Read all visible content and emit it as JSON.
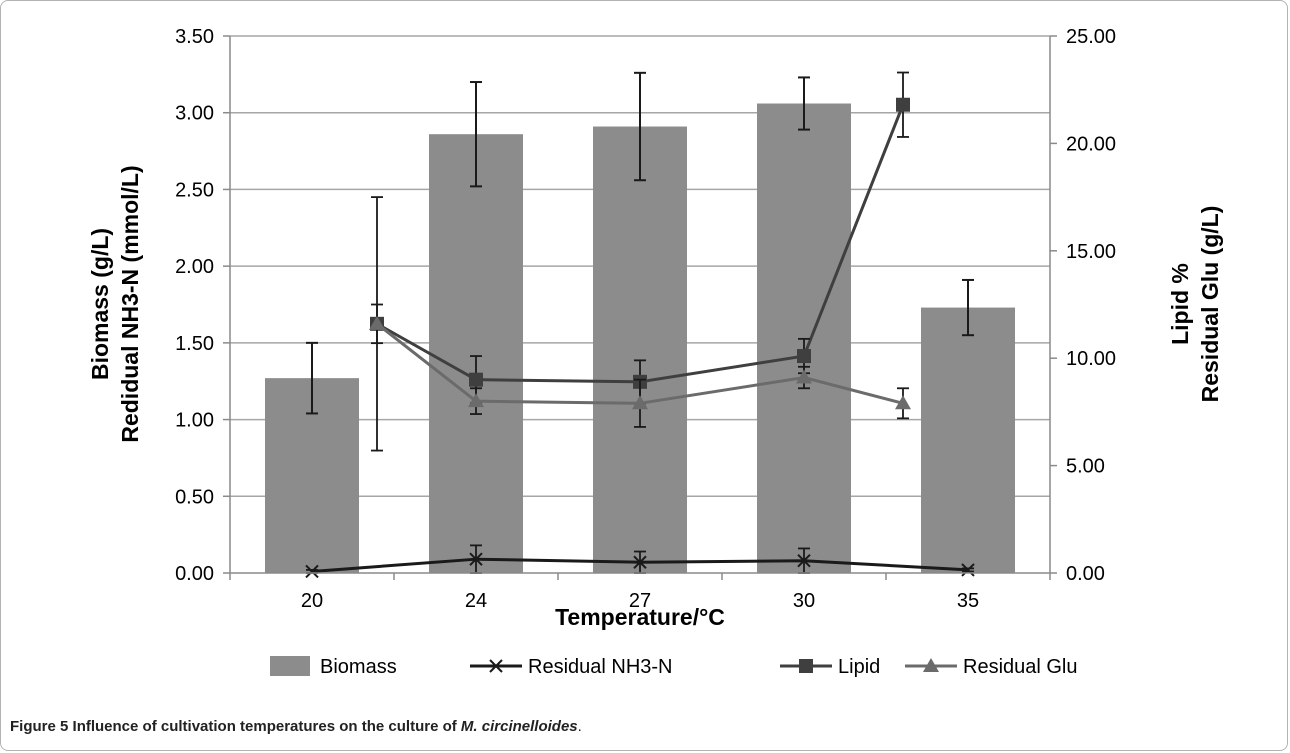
{
  "chart_data": {
    "type": "bar",
    "categories": [
      "20",
      "24",
      "27",
      "30",
      "35"
    ],
    "xlabel": "Temperature/°C",
    "ylabel_left_line1": "Biomass (g/L)",
    "ylabel_left_line2": "Redidual NH3-N (mmol/L)",
    "ylabel_right_line1": "Lipid %",
    "ylabel_right_line2": "Residual Glu (g/L)",
    "ylim_left": [
      0,
      3.5
    ],
    "ylim_right": [
      0,
      25
    ],
    "yticks_left": [
      "0.00",
      "0.50",
      "1.00",
      "1.50",
      "2.00",
      "2.50",
      "3.00",
      "3.50"
    ],
    "yticks_right": [
      "0.00",
      "5.00",
      "10.00",
      "15.00",
      "20.00",
      "25.00"
    ],
    "grid": true,
    "legend_position": "bottom",
    "series": [
      {
        "name": "Biomass",
        "kind": "bar",
        "axis": "left",
        "color": "#8c8c8c",
        "values": [
          1.27,
          2.86,
          2.91,
          3.06,
          1.73
        ],
        "errors": [
          0.23,
          0.34,
          0.35,
          0.17,
          0.18
        ]
      },
      {
        "name": "Residual NH3-N",
        "kind": "line",
        "marker": "x",
        "axis": "left",
        "color": "#1a1a1a",
        "values": [
          0.01,
          0.09,
          0.07,
          0.08,
          0.02
        ],
        "errors": [
          0.01,
          0.09,
          0.07,
          0.08,
          0.01
        ]
      },
      {
        "name": "Lipid",
        "kind": "line",
        "marker": "square",
        "axis": "right",
        "color": "#3f3f3f",
        "values": [
          11.6,
          9.0,
          8.9,
          10.1,
          21.8
        ],
        "errors": [
          0.9,
          1.1,
          1.0,
          0.8,
          1.5
        ]
      },
      {
        "name": "Residual Glu",
        "kind": "line",
        "marker": "triangle",
        "axis": "right",
        "color": "#6b6b6b",
        "values": [
          11.6,
          8.0,
          7.9,
          9.1,
          7.9
        ],
        "errors": [
          5.9,
          0.6,
          1.1,
          0.5,
          0.7
        ]
      }
    ]
  },
  "caption": {
    "label": "Figure 5",
    "text_before": " Influence of cultivation temperatures on the culture of ",
    "species": "M. circinelloides",
    "text_after": "."
  }
}
